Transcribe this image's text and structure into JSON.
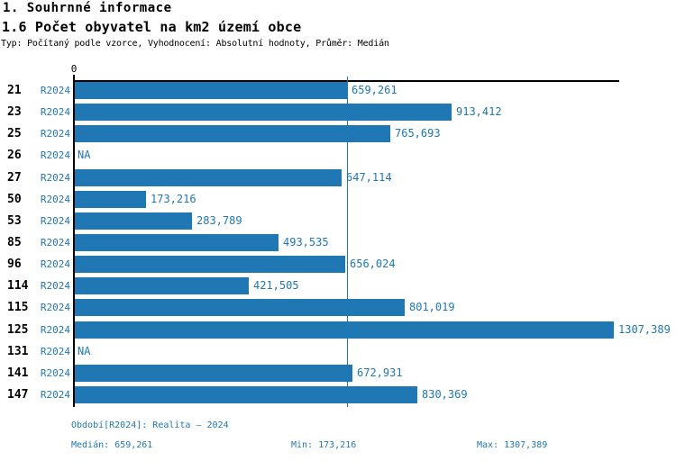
{
  "header": {
    "title1": "1. Souhrnné informace",
    "title2": "1.6 Počet obyvatel na km2 území obce",
    "subtitle": "Typ: Počítaný podle vzorce, Vyhodnocení: Absolutní hodnoty, Průměr: Medián"
  },
  "chart_data": {
    "type": "bar",
    "orientation": "horizontal",
    "title": "1.6 Počet obyvatel na km2 území obce",
    "categories": [
      "21",
      "23",
      "25",
      "26",
      "27",
      "50",
      "53",
      "85",
      "96",
      "114",
      "115",
      "125",
      "131",
      "141",
      "147"
    ],
    "series": [
      {
        "name": "R2024",
        "values": [
          659.261,
          913.412,
          765.693,
          null,
          647.114,
          173.216,
          283.789,
          493.535,
          656.024,
          421.505,
          801.019,
          1307.389,
          null,
          672.931,
          830.369
        ],
        "value_labels": [
          "659,261",
          "913,412",
          "765,693",
          "NA",
          "647,114",
          "173,216",
          "283,789",
          "493,535",
          "656,024",
          "421,505",
          "801,019",
          "1307,389",
          "NA",
          "672,931",
          "830,369"
        ]
      }
    ],
    "na_label": "NA",
    "x_axis": {
      "zero_label": "0",
      "xlim": [
        0,
        1325
      ],
      "gridlines": false
    },
    "median_value": 659.261,
    "median_line_shown": true,
    "legend_position": "none",
    "bar_color": "#1f77b4"
  },
  "footer": {
    "period": "Období[R2024]: Realita – 2024",
    "median": "Medián: 659,261",
    "min": "Min: 173,216",
    "max": "Max: 1307,389"
  },
  "colors": {
    "accent": "#1f77b4",
    "text": "#000000",
    "background": "#ffffff"
  }
}
